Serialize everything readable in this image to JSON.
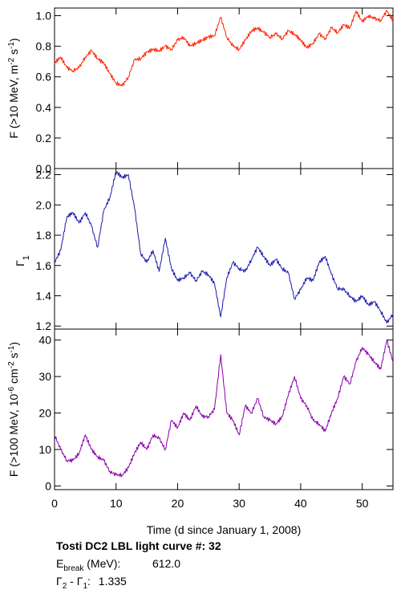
{
  "chart_data": [
    {
      "type": "line",
      "panel": "top",
      "ylabel_main": "F (>10 MeV, m",
      "ylabel_exp1": "-2",
      "ylabel_mid": " s",
      "ylabel_exp2": "-1",
      "ylabel_end": ")",
      "xlim": [
        0,
        55
      ],
      "ylim": [
        0.0,
        1.05
      ],
      "yticks": [
        "0.0",
        "0.2",
        "0.4",
        "0.6",
        "0.8",
        "1.0"
      ],
      "color": "#ff2200",
      "x": [
        0,
        1,
        2,
        3,
        4,
        5,
        6,
        7,
        8,
        9,
        10,
        11,
        12,
        13,
        14,
        15,
        16,
        17,
        18,
        19,
        20,
        21,
        22,
        23,
        24,
        25,
        26,
        27,
        28,
        29,
        30,
        31,
        32,
        33,
        34,
        35,
        36,
        37,
        38,
        39,
        40,
        41,
        42,
        43,
        44,
        45,
        46,
        47,
        48,
        49,
        50,
        51,
        52,
        53,
        54,
        55
      ],
      "y": [
        0.69,
        0.73,
        0.66,
        0.64,
        0.66,
        0.73,
        0.77,
        0.72,
        0.69,
        0.62,
        0.56,
        0.54,
        0.6,
        0.71,
        0.72,
        0.76,
        0.78,
        0.77,
        0.8,
        0.78,
        0.84,
        0.86,
        0.8,
        0.82,
        0.84,
        0.86,
        0.87,
        0.99,
        0.86,
        0.8,
        0.78,
        0.84,
        0.9,
        0.92,
        0.89,
        0.86,
        0.88,
        0.85,
        0.9,
        0.88,
        0.84,
        0.79,
        0.82,
        0.88,
        0.85,
        0.92,
        0.89,
        0.94,
        0.92,
        1.03,
        0.96,
        1.0,
        0.98,
        0.97,
        1.03,
        0.97
      ]
    },
    {
      "type": "line",
      "panel": "middle",
      "ylabel_main": "Γ",
      "ylabel_sub": "1",
      "xlim": [
        0,
        55
      ],
      "ylim": [
        1.18,
        2.24
      ],
      "yticks": [
        "1.2",
        "1.4",
        "1.6",
        "1.8",
        "2.0",
        "2.2"
      ],
      "color": "#1a1aaa",
      "x": [
        0,
        1,
        2,
        3,
        4,
        5,
        6,
        7,
        8,
        9,
        10,
        11,
        12,
        13,
        14,
        15,
        16,
        17,
        18,
        19,
        20,
        21,
        22,
        23,
        24,
        25,
        26,
        27,
        28,
        29,
        30,
        31,
        32,
        33,
        34,
        35,
        36,
        37,
        38,
        39,
        40,
        41,
        42,
        43,
        44,
        45,
        46,
        47,
        48,
        49,
        50,
        51,
        52,
        53,
        54,
        55
      ],
      "y": [
        1.62,
        1.7,
        1.92,
        1.95,
        1.88,
        1.95,
        1.86,
        1.72,
        1.96,
        2.05,
        2.22,
        2.18,
        2.2,
        1.98,
        1.68,
        1.62,
        1.7,
        1.56,
        1.78,
        1.58,
        1.5,
        1.52,
        1.55,
        1.5,
        1.56,
        1.54,
        1.48,
        1.26,
        1.52,
        1.62,
        1.58,
        1.56,
        1.64,
        1.72,
        1.66,
        1.6,
        1.64,
        1.58,
        1.55,
        1.38,
        1.44,
        1.52,
        1.5,
        1.62,
        1.66,
        1.54,
        1.45,
        1.44,
        1.4,
        1.36,
        1.4,
        1.34,
        1.36,
        1.3,
        1.22,
        1.28
      ]
    },
    {
      "type": "line",
      "panel": "bottom",
      "ylabel_main": "F (>100 MeV, 10",
      "ylabel_exp1": "-6",
      "ylabel_mid": " cm",
      "ylabel_exp2": "-2",
      "ylabel_mid2": " s",
      "ylabel_exp3": "-1",
      "ylabel_end": ")",
      "xlabel": "Time (d since January 1, 2008)",
      "xlim": [
        0,
        55
      ],
      "ylim": [
        -1,
        43
      ],
      "xticks": [
        "0",
        "10",
        "20",
        "30",
        "40",
        "50"
      ],
      "yticks": [
        "0",
        "10",
        "20",
        "30",
        "40"
      ],
      "color": "#8800aa",
      "x": [
        0,
        1,
        2,
        3,
        4,
        5,
        6,
        7,
        8,
        9,
        10,
        11,
        12,
        13,
        14,
        15,
        16,
        17,
        18,
        19,
        20,
        21,
        22,
        23,
        24,
        25,
        26,
        27,
        28,
        29,
        30,
        31,
        32,
        33,
        34,
        35,
        36,
        37,
        38,
        39,
        40,
        41,
        42,
        43,
        44,
        45,
        46,
        47,
        48,
        49,
        50,
        51,
        52,
        53,
        54,
        55
      ],
      "y": [
        14,
        10,
        7,
        7,
        9,
        14,
        10,
        8,
        7,
        4,
        3,
        3,
        5,
        9,
        12,
        10,
        14,
        13,
        10,
        18,
        16,
        20,
        18,
        22,
        19,
        19,
        21,
        36,
        20,
        18,
        14,
        22,
        20,
        24,
        19,
        18,
        17,
        19,
        25,
        30,
        24,
        22,
        18,
        17,
        15,
        20,
        24,
        30,
        28,
        34,
        38,
        36,
        34,
        32,
        40,
        34
      ]
    }
  ],
  "caption": {
    "line1": "Tosti DC2 LBL light curve #:  32",
    "ebreak_label_main": "E",
    "ebreak_label_sub": "break",
    "ebreak_label_end": " (MeV):",
    "ebreak_value": "612.0",
    "gamma_label": "Γ",
    "gamma_sub1": "2",
    "gamma_mid": " - Γ",
    "gamma_sub2": "1",
    "gamma_end": ":",
    "gamma_value": "1.335"
  }
}
